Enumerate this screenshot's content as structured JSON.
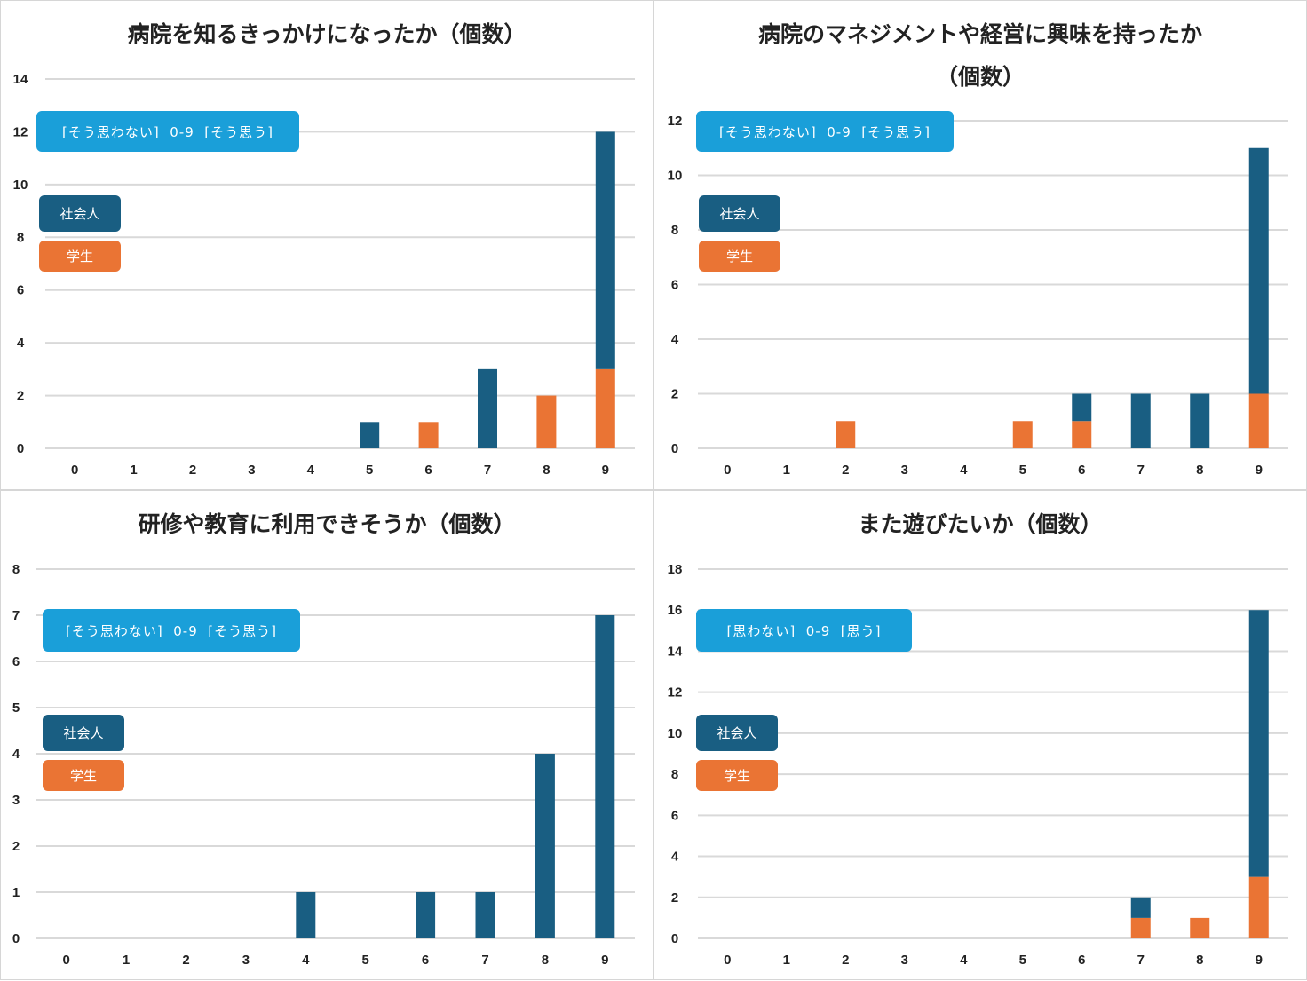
{
  "colors": {
    "worker": "#195e82",
    "student": "#ea7434",
    "range_bg": "#1a9fd9",
    "grid": "#d9d9d9"
  },
  "chart_data": [
    {
      "type": "bar",
      "stacked": true,
      "title": "病院を知るきっかけになったか（個数）",
      "range_label": "[そう思わない]  0-9  [そう思う]",
      "categories": [
        "0",
        "1",
        "2",
        "3",
        "4",
        "5",
        "6",
        "7",
        "8",
        "9"
      ],
      "ylim": [
        0,
        14
      ],
      "yticks": [
        0,
        2,
        4,
        6,
        8,
        10,
        12,
        14
      ],
      "series": [
        {
          "name": "学生",
          "values": [
            0,
            0,
            0,
            0,
            0,
            0,
            1,
            0,
            2,
            3
          ]
        },
        {
          "name": "社会人",
          "values": [
            0,
            0,
            0,
            0,
            0,
            1,
            0,
            3,
            0,
            9
          ]
        }
      ],
      "legend": [
        "社会人",
        "学生"
      ]
    },
    {
      "type": "bar",
      "stacked": true,
      "title": "病院のマネジメントや経営に興味を持ったか",
      "title_line2": "（個数）",
      "range_label": "[そう思わない]  0-9  [そう思う]",
      "categories": [
        "0",
        "1",
        "2",
        "3",
        "4",
        "5",
        "6",
        "7",
        "8",
        "9"
      ],
      "ylim": [
        0,
        12
      ],
      "yticks": [
        0,
        2,
        4,
        6,
        8,
        10,
        12
      ],
      "series": [
        {
          "name": "学生",
          "values": [
            0,
            0,
            1,
            0,
            0,
            1,
            1,
            0,
            0,
            2
          ]
        },
        {
          "name": "社会人",
          "values": [
            0,
            0,
            0,
            0,
            0,
            0,
            1,
            2,
            2,
            9
          ]
        }
      ],
      "legend": [
        "社会人",
        "学生"
      ]
    },
    {
      "type": "bar",
      "stacked": true,
      "title": "研修や教育に利用できそうか（個数）",
      "range_label": "[そう思わない]  0-9  [そう思う]",
      "categories": [
        "0",
        "1",
        "2",
        "3",
        "4",
        "5",
        "6",
        "7",
        "8",
        "9"
      ],
      "ylim": [
        0,
        8
      ],
      "yticks": [
        0,
        1,
        2,
        3,
        4,
        5,
        6,
        7,
        8
      ],
      "series": [
        {
          "name": "学生",
          "values": [
            0,
            0,
            0,
            0,
            0,
            0,
            0,
            0,
            0,
            0
          ]
        },
        {
          "name": "社会人",
          "values": [
            0,
            0,
            0,
            0,
            1,
            0,
            1,
            1,
            4,
            7
          ]
        }
      ],
      "legend": [
        "社会人",
        "学生"
      ]
    },
    {
      "type": "bar",
      "stacked": true,
      "title": "また遊びたいか（個数）",
      "range_label": "[思わない]  0-9  [思う]",
      "categories": [
        "0",
        "1",
        "2",
        "3",
        "4",
        "5",
        "6",
        "7",
        "8",
        "9"
      ],
      "ylim": [
        0,
        18
      ],
      "yticks": [
        0,
        2,
        4,
        6,
        8,
        10,
        12,
        14,
        16,
        18
      ],
      "series": [
        {
          "name": "学生",
          "values": [
            0,
            0,
            0,
            0,
            0,
            0,
            0,
            1,
            1,
            3
          ]
        },
        {
          "name": "社会人",
          "values": [
            0,
            0,
            0,
            0,
            0,
            0,
            0,
            1,
            0,
            13
          ]
        }
      ],
      "legend": [
        "社会人",
        "学生"
      ]
    }
  ]
}
